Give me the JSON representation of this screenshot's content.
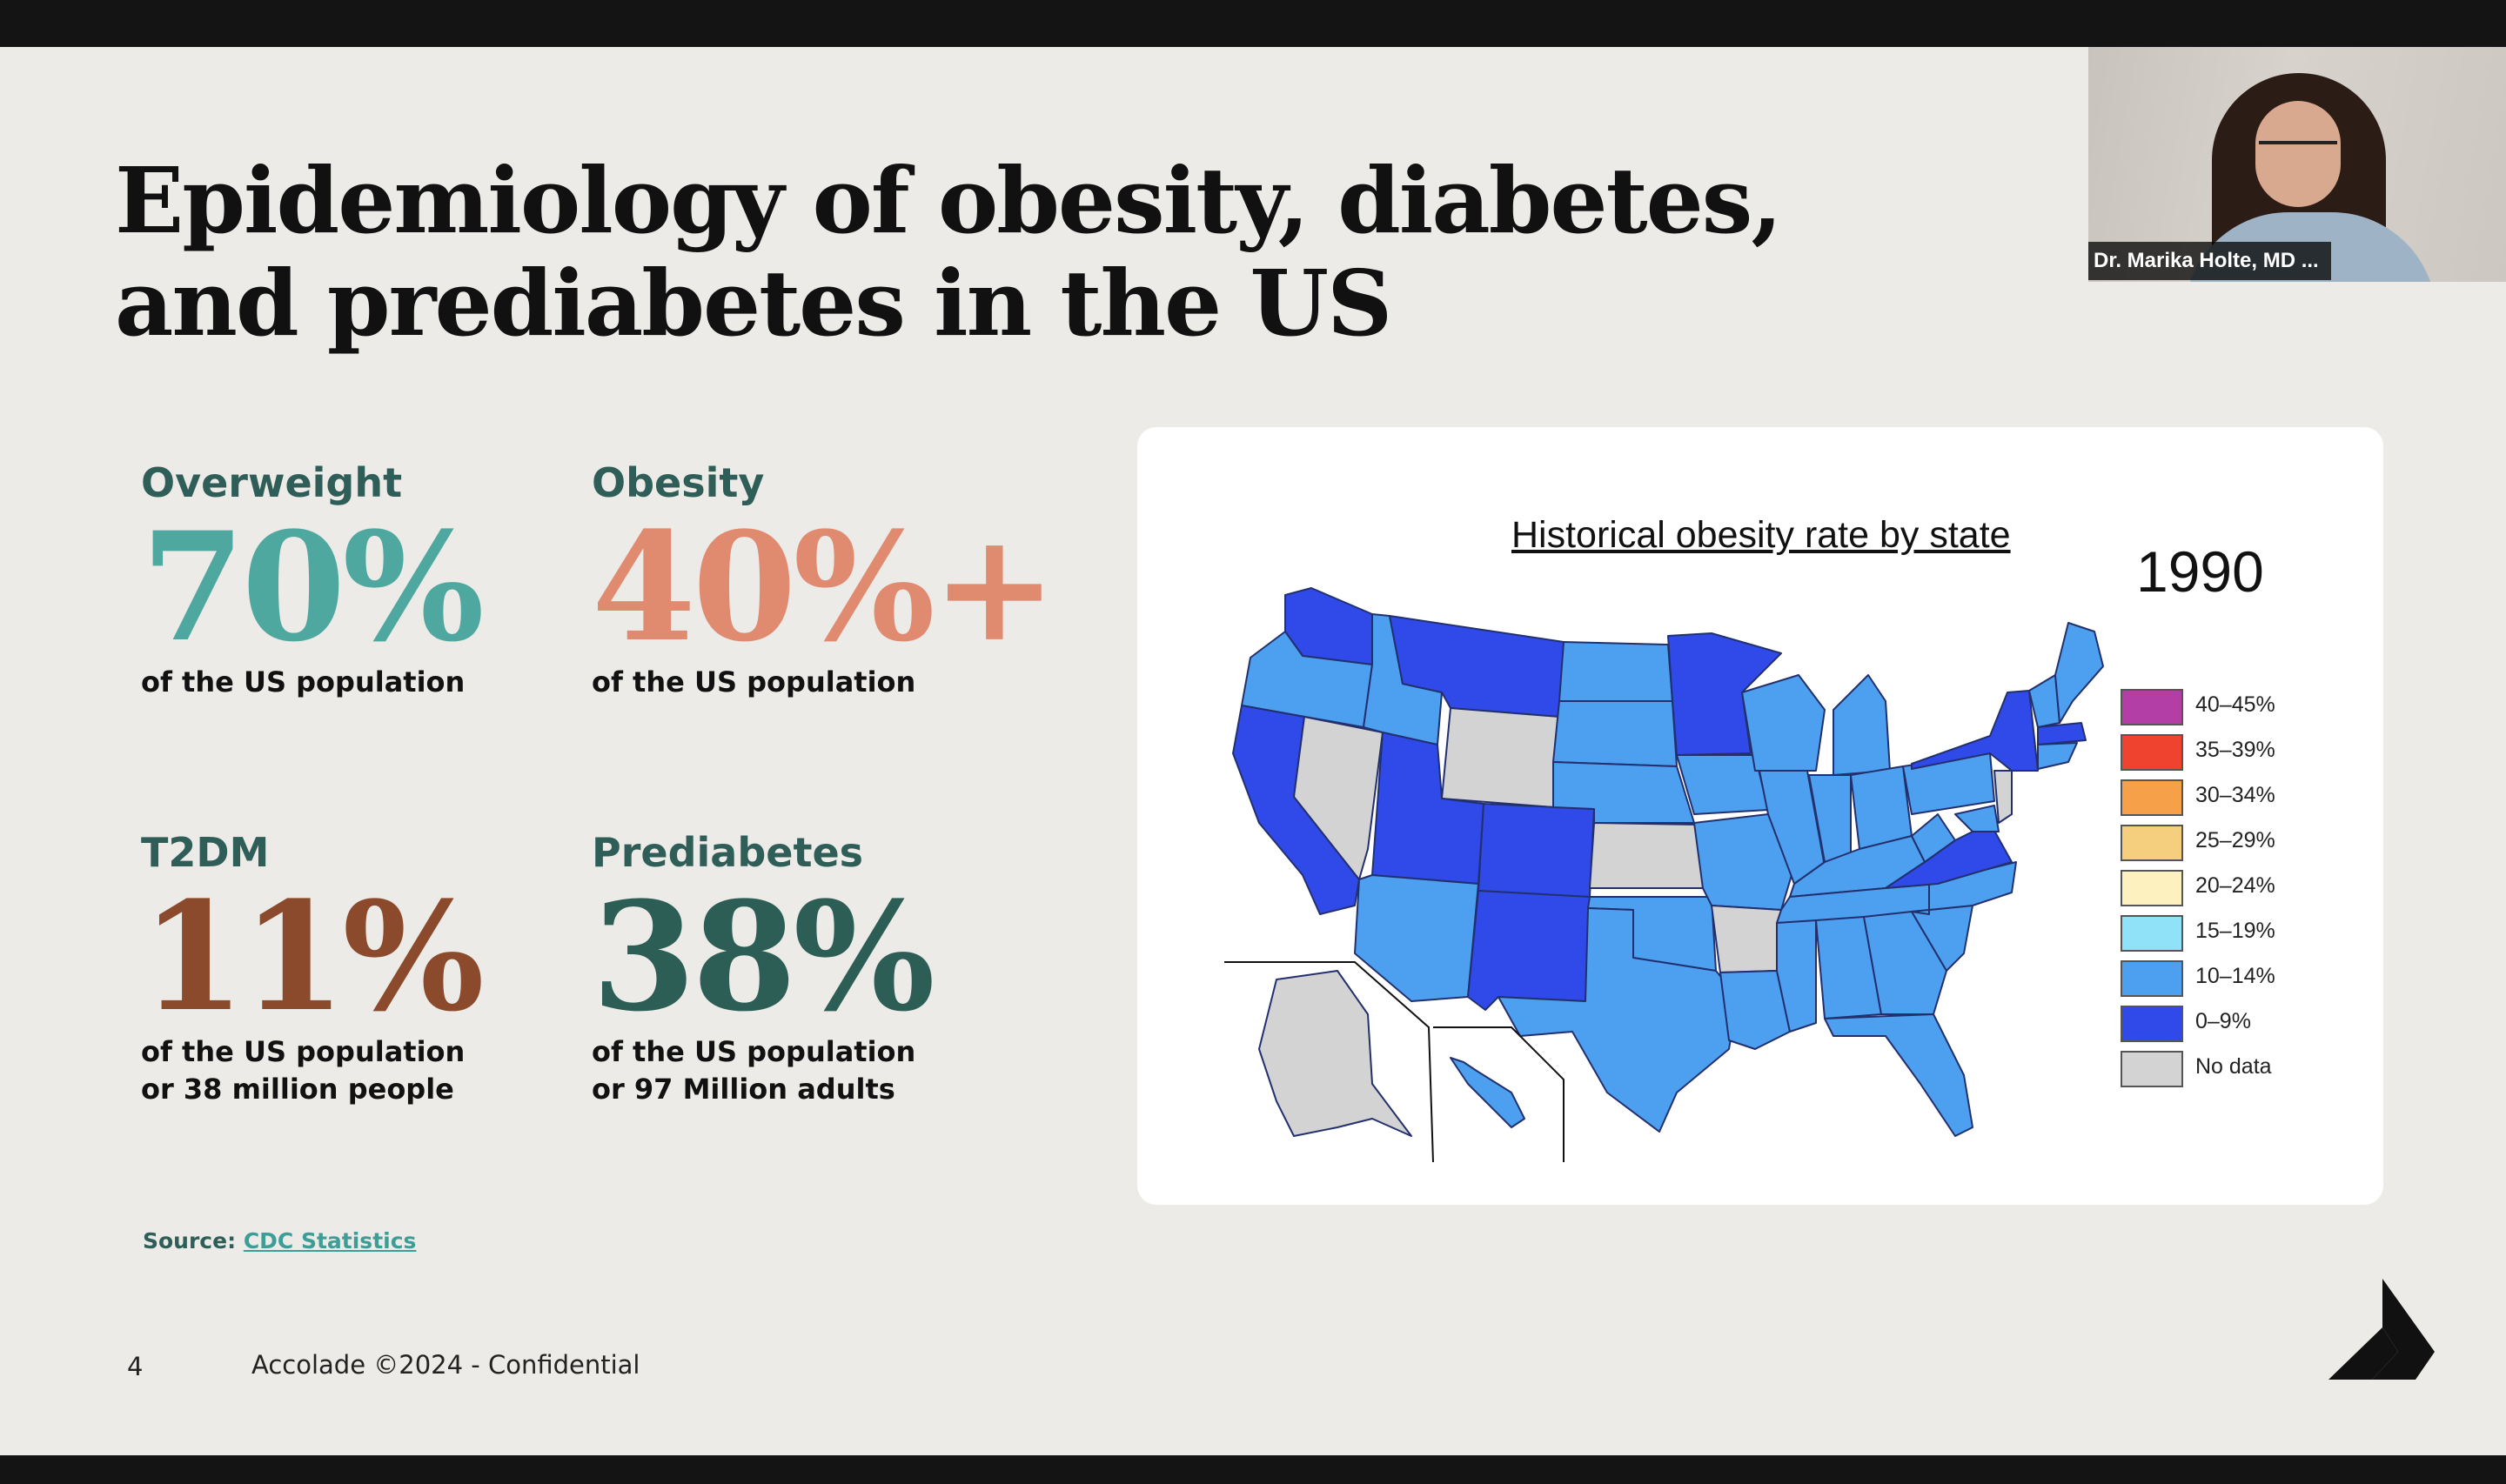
{
  "slide": {
    "title_line1": "Epidemiology of obesity, diabetes,",
    "title_line2": "and prediabetes in the US",
    "stats": [
      {
        "label": "Overweight",
        "value": "70%",
        "desc": "of the US population",
        "color": "#4fa8a0"
      },
      {
        "label": "Obesity",
        "value": "40%+",
        "desc": "of the US population",
        "color": "#e08a70"
      },
      {
        "label": "T2DM",
        "value": "11%",
        "desc": "of the US population or 38 million people",
        "color": "#8b4a2b"
      },
      {
        "label": "Prediabetes",
        "value": "38%",
        "desc": "of the US population or 97 Million adults",
        "color": "#2c5e55"
      }
    ],
    "source_label": "Source:",
    "source_link": "CDC Statistics",
    "page_number": "4",
    "footer": "Accolade ©2024 - Confidential"
  },
  "map": {
    "title": "Historical obesity rate by state",
    "year": "1990",
    "legend": [
      {
        "label": "40–45%",
        "color": "#b33fa6"
      },
      {
        "label": "35–39%",
        "color": "#ef4330"
      },
      {
        "label": "30–34%",
        "color": "#f7a04a"
      },
      {
        "label": "25–29%",
        "color": "#f6cf7e"
      },
      {
        "label": "20–24%",
        "color": "#fdf2bf"
      },
      {
        "label": "15–19%",
        "color": "#8fe2f7"
      },
      {
        "label": "10–14%",
        "color": "#4d9ff0"
      },
      {
        "label": "0–9%",
        "color": "#2f4ae8"
      },
      {
        "label": "No data",
        "color": "#d3d3d3"
      }
    ]
  },
  "video": {
    "participant_name": "Dr. Marika Holte, MD ..."
  }
}
